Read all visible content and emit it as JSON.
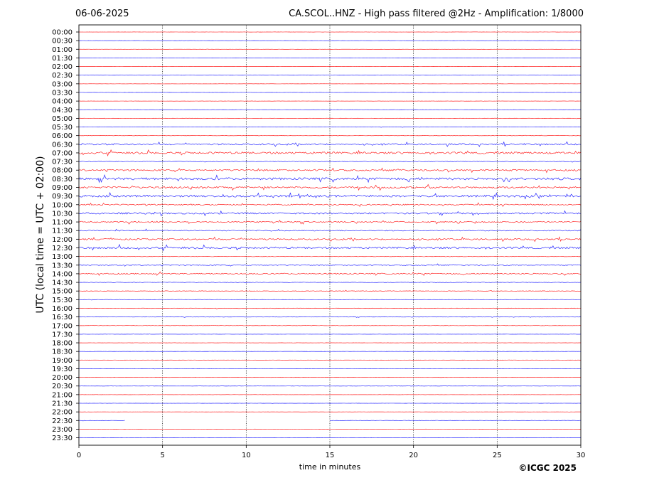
{
  "header": {
    "date": "06-06-2025",
    "title": "CA.SCOL..HNZ - High pass filtered @2Hz - Amplification: 1/8000"
  },
  "footer": {
    "copyright": "©ICGC 2025"
  },
  "chart_data": {
    "type": "line",
    "title": "CA.SCOL..HNZ - High pass filtered @2Hz - Amplification: 1/8000",
    "xlabel": "time in minutes",
    "ylabel": "UTC (local time = UTC + 02:00)",
    "xlim": [
      0,
      30
    ],
    "xticks": [
      0,
      5,
      10,
      15,
      20,
      25,
      30
    ],
    "xtick_labels": [
      "0",
      "5",
      "10",
      "15",
      "20",
      "25",
      "30"
    ],
    "grid": "vertical dotted lines at 5-minute intervals",
    "row_labels": [
      "00:00",
      "00:30",
      "01:00",
      "01:30",
      "02:00",
      "02:30",
      "03:00",
      "03:30",
      "04:00",
      "04:30",
      "05:00",
      "05:30",
      "06:00",
      "06:30",
      "07:00",
      "07:30",
      "08:00",
      "08:30",
      "09:00",
      "09:30",
      "10:00",
      "10:30",
      "11:00",
      "11:30",
      "12:00",
      "12:30",
      "13:00",
      "13:30",
      "14:00",
      "14:30",
      "15:00",
      "15:30",
      "16:00",
      "16:30",
      "17:00",
      "17:30",
      "18:00",
      "18:30",
      "19:00",
      "19:30",
      "20:00",
      "20:30",
      "21:00",
      "21:30",
      "22:00",
      "22:30",
      "23:00",
      "23:30"
    ],
    "trace_colors": [
      "#ff0000",
      "#0000ff"
    ],
    "row_activity": [
      0.05,
      0.06,
      0.05,
      0.05,
      0.05,
      0.05,
      0.05,
      0.05,
      0.06,
      0.05,
      0.07,
      0.08,
      0.1,
      0.45,
      0.6,
      0.2,
      0.5,
      0.7,
      0.55,
      0.65,
      0.35,
      0.5,
      0.4,
      0.3,
      0.45,
      0.6,
      0.15,
      0.3,
      0.35,
      0.15,
      0.15,
      0.12,
      0.12,
      0.1,
      0.1,
      0.06,
      0.06,
      0.06,
      0.06,
      0.06,
      0.06,
      0.06,
      0.05,
      0.05,
      0.05,
      0.12,
      0.05,
      0.05
    ],
    "gaps": [
      {
        "row": "22:30",
        "from_min": 2.8,
        "to_min": 15.0
      }
    ]
  }
}
